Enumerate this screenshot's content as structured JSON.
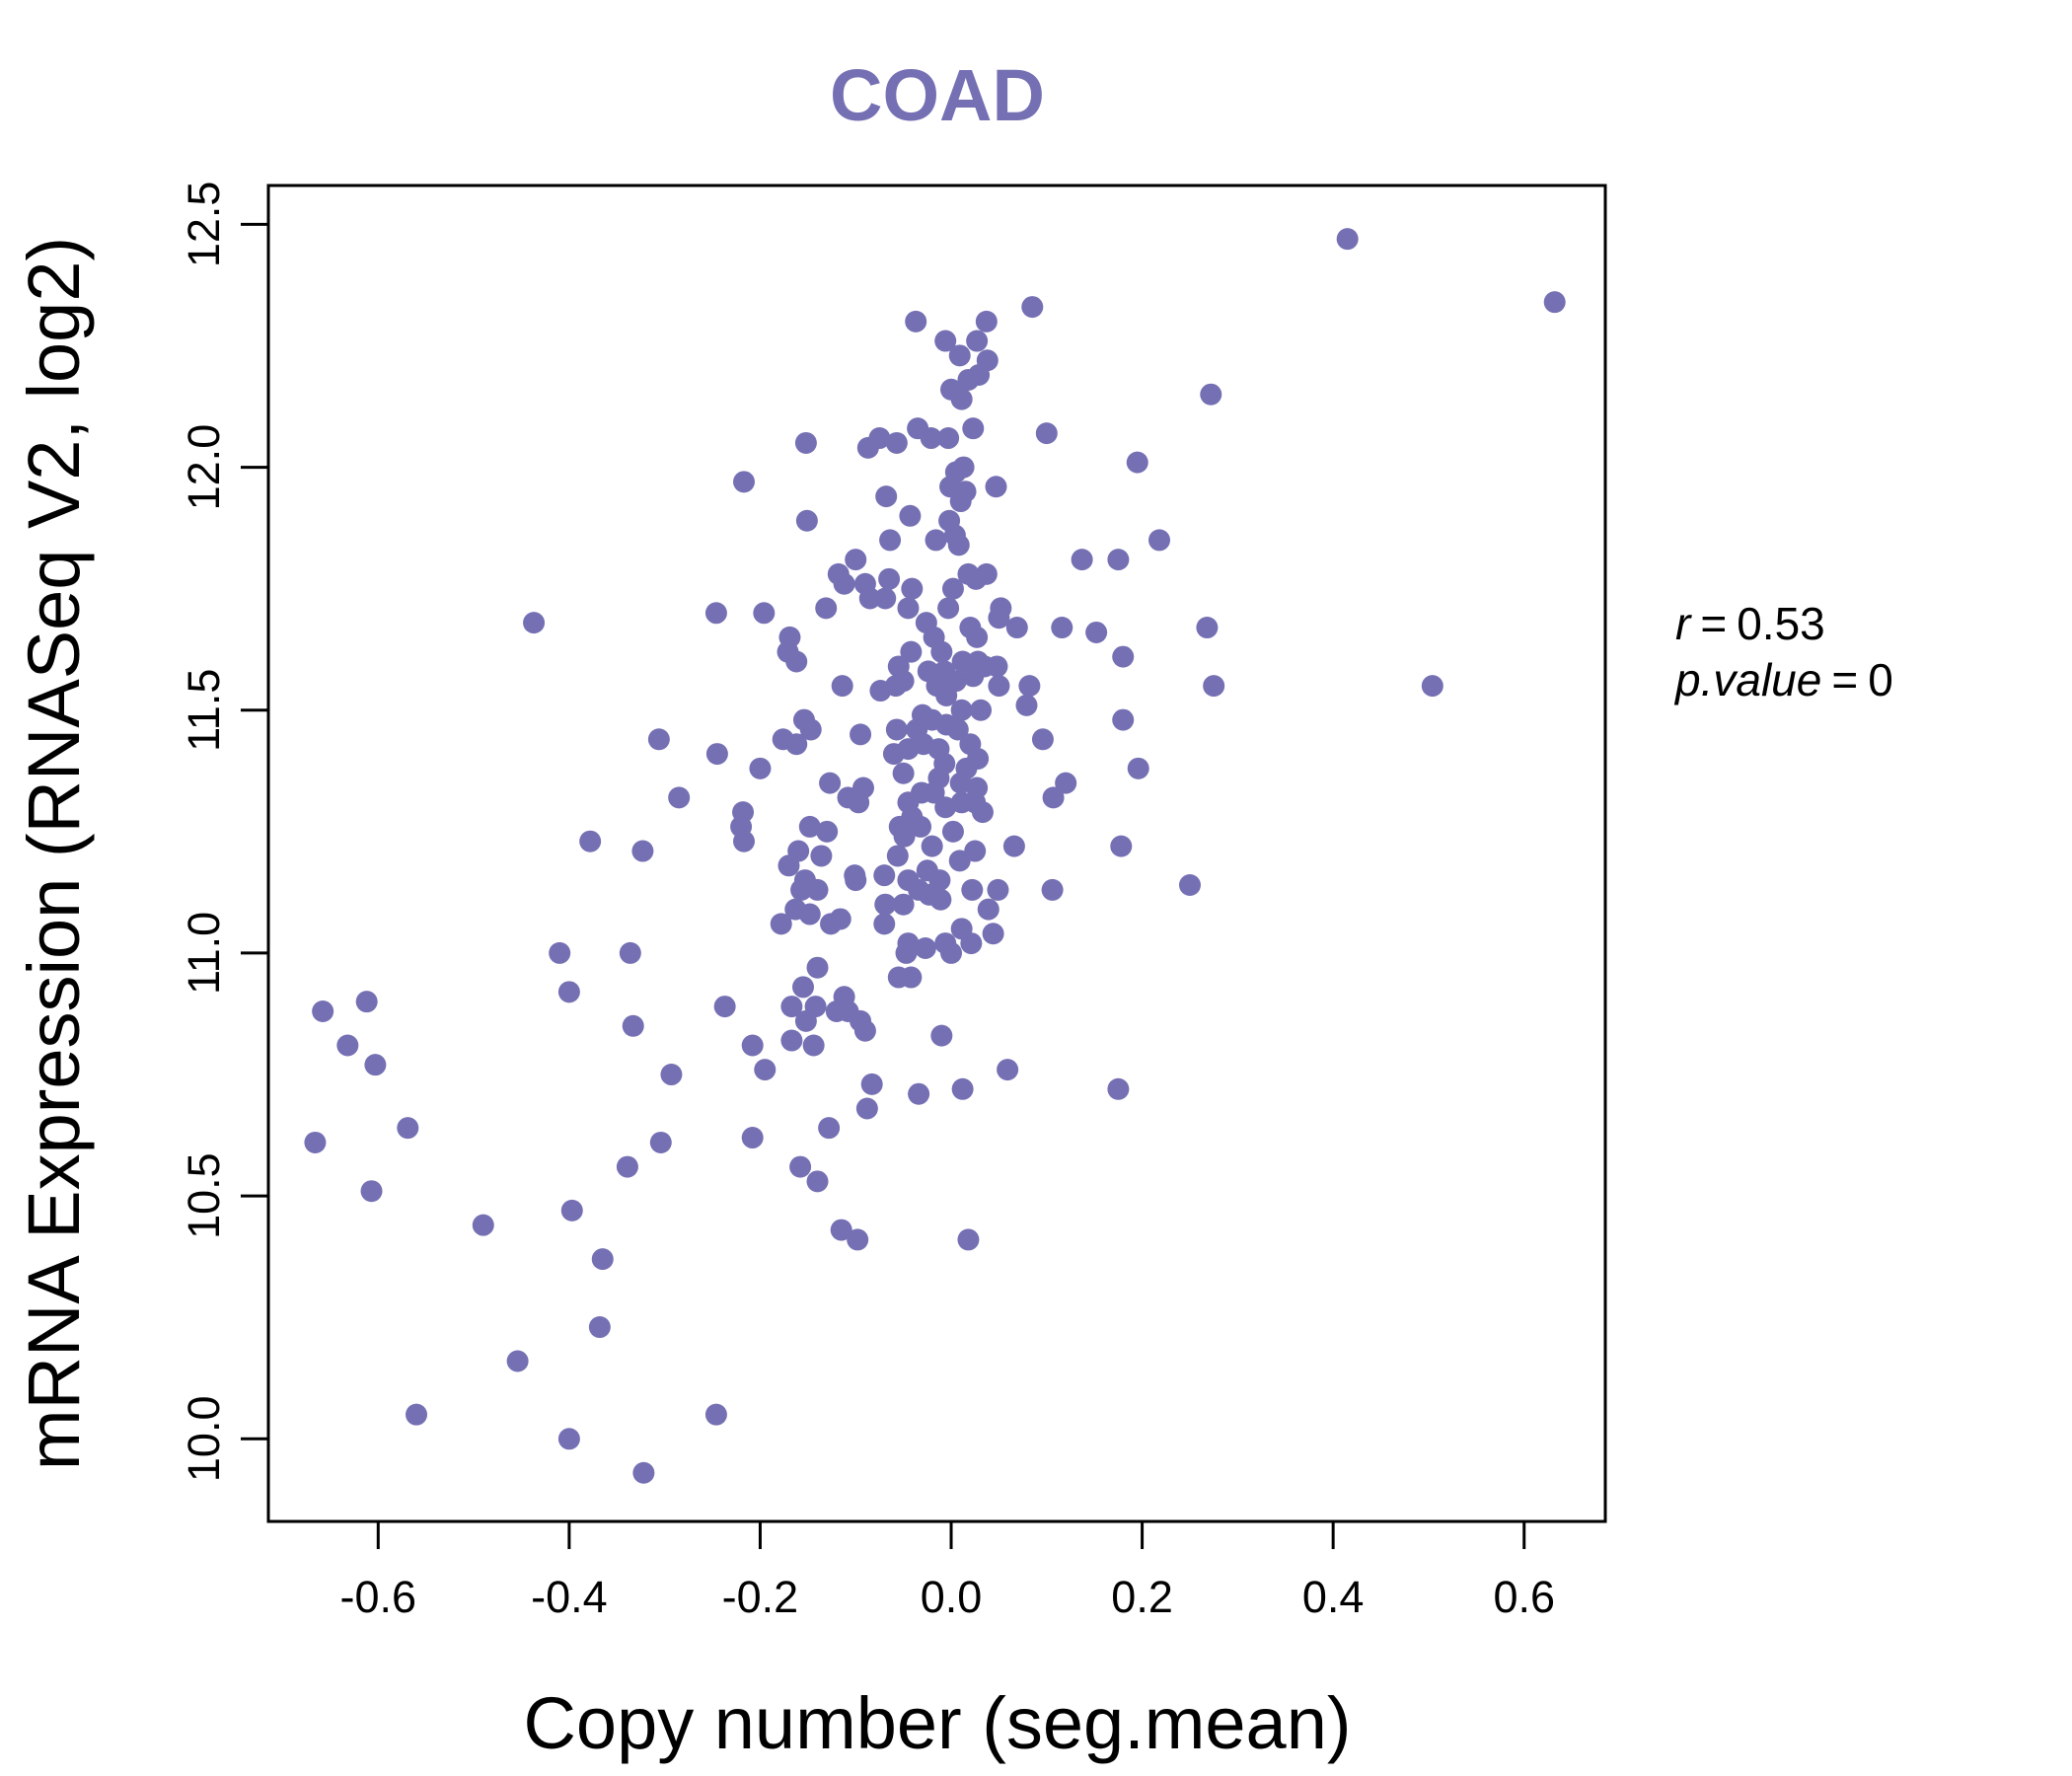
{
  "colors": {
    "accent": "#7570B3",
    "axis": "#000000"
  },
  "chart_data": {
    "type": "scatter",
    "title": "COAD",
    "xlabel": "Copy number (seg.mean)",
    "ylabel": "mRNA Expression (RNASeq V2, log2)",
    "xlim": [
      -0.715,
      0.685
    ],
    "ylim": [
      9.83,
      12.58
    ],
    "x_ticks": [
      -0.6,
      -0.4,
      -0.2,
      0.0,
      0.2,
      0.4,
      0.6
    ],
    "x_tick_labels": [
      "-0.6",
      "-0.4",
      "-0.2",
      "0.0",
      "0.2",
      "0.4",
      "0.6"
    ],
    "y_ticks": [
      10.0,
      10.5,
      11.0,
      11.5,
      12.0,
      12.5
    ],
    "y_tick_labels": [
      "10.0",
      "10.5",
      "11.0",
      "11.5",
      "12.0",
      "12.5"
    ],
    "annotation": {
      "r_label": "r",
      "r_value": "0.53",
      "p_label": "p.value",
      "p_value": "0"
    },
    "points": [
      [
        0.415,
        12.47
      ],
      [
        0.632,
        12.34
      ],
      [
        0.272,
        12.15
      ],
      [
        0.504,
        11.55
      ],
      [
        0.268,
        11.67
      ],
      [
        0.275,
        11.55
      ],
      [
        0.25,
        11.14
      ],
      [
        0.085,
        12.33
      ],
      [
        0.1,
        12.07
      ],
      [
        0.195,
        12.01
      ],
      [
        0.218,
        11.85
      ],
      [
        0.175,
        11.81
      ],
      [
        0.137,
        11.81
      ],
      [
        0.18,
        11.61
      ],
      [
        0.152,
        11.66
      ],
      [
        0.116,
        11.67
      ],
      [
        0.18,
        11.48
      ],
      [
        0.196,
        11.38
      ],
      [
        0.12,
        11.35
      ],
      [
        0.107,
        11.32
      ],
      [
        0.178,
        11.22
      ],
      [
        0.106,
        11.13
      ],
      [
        0.175,
        10.72
      ],
      [
        0.059,
        10.76
      ],
      [
        0.096,
        11.44
      ],
      [
        0.079,
        11.51
      ],
      [
        0.082,
        11.55
      ],
      [
        0.069,
        11.67
      ],
      [
        0.052,
        11.71
      ],
      [
        0.05,
        11.69
      ],
      [
        0.048,
        11.59
      ],
      [
        0.05,
        11.55
      ],
      [
        0.047,
        11.96
      ],
      [
        0.037,
        12.3
      ],
      [
        0.038,
        12.22
      ],
      [
        0.027,
        12.26
      ],
      [
        0.023,
        12.08
      ],
      [
        0.029,
        12.19
      ],
      [
        0.018,
        12.18
      ],
      [
        0.011,
        12.14
      ],
      [
        0.009,
        12.23
      ],
      [
        0.0,
        12.16
      ],
      [
        -0.006,
        12.26
      ],
      [
        -0.037,
        12.3
      ],
      [
        0.013,
        12.0
      ],
      [
        0.005,
        11.99
      ],
      [
        -0.003,
        12.06
      ],
      [
        -0.001,
        11.96
      ],
      [
        0.015,
        11.95
      ],
      [
        0.01,
        11.93
      ],
      [
        -0.002,
        11.89
      ],
      [
        0.004,
        11.86
      ],
      [
        0.008,
        11.84
      ],
      [
        -0.016,
        11.85
      ],
      [
        -0.043,
        11.9
      ],
      [
        -0.068,
        11.94
      ],
      [
        -0.021,
        12.06
      ],
      [
        -0.035,
        12.08
      ],
      [
        -0.057,
        12.05
      ],
      [
        -0.075,
        12.06
      ],
      [
        -0.087,
        12.04
      ],
      [
        -0.152,
        12.05
      ],
      [
        -0.217,
        11.97
      ],
      [
        -0.151,
        11.89
      ],
      [
        -0.064,
        11.85
      ],
      [
        -0.1,
        11.81
      ],
      [
        -0.118,
        11.78
      ],
      [
        -0.112,
        11.76
      ],
      [
        -0.065,
        11.77
      ],
      [
        -0.09,
        11.76
      ],
      [
        -0.085,
        11.73
      ],
      [
        -0.069,
        11.73
      ],
      [
        -0.041,
        11.75
      ],
      [
        -0.045,
        11.71
      ],
      [
        -0.026,
        11.68
      ],
      [
        -0.003,
        11.71
      ],
      [
        0.002,
        11.75
      ],
      [
        0.018,
        11.78
      ],
      [
        0.026,
        11.77
      ],
      [
        0.037,
        11.78
      ],
      [
        0.02,
        11.67
      ],
      [
        0.027,
        11.65
      ],
      [
        -0.018,
        11.65
      ],
      [
        -0.01,
        11.62
      ],
      [
        -0.042,
        11.62
      ],
      [
        -0.055,
        11.59
      ],
      [
        -0.007,
        11.58
      ],
      [
        0.005,
        11.56
      ],
      [
        0.012,
        11.6
      ],
      [
        0.023,
        11.57
      ],
      [
        0.028,
        11.6
      ],
      [
        0.035,
        11.59
      ],
      [
        0.031,
        11.5
      ],
      [
        0.011,
        11.5
      ],
      [
        -0.005,
        11.53
      ],
      [
        -0.015,
        11.55
      ],
      [
        -0.024,
        11.58
      ],
      [
        -0.05,
        11.56
      ],
      [
        -0.058,
        11.55
      ],
      [
        -0.074,
        11.54
      ],
      [
        -0.03,
        11.49
      ],
      [
        -0.036,
        11.46
      ],
      [
        -0.02,
        11.48
      ],
      [
        -0.005,
        11.47
      ],
      [
        0.007,
        11.46
      ],
      [
        0.02,
        11.43
      ],
      [
        0.028,
        11.4
      ],
      [
        0.016,
        11.38
      ],
      [
        -0.007,
        11.39
      ],
      [
        -0.013,
        11.42
      ],
      [
        -0.029,
        11.43
      ],
      [
        -0.045,
        11.42
      ],
      [
        -0.057,
        11.46
      ],
      [
        -0.06,
        11.41
      ],
      [
        -0.05,
        11.37
      ],
      [
        -0.013,
        11.36
      ],
      [
        0.01,
        11.35
      ],
      [
        0.027,
        11.34
      ],
      [
        0.025,
        11.31
      ],
      [
        0.033,
        11.29
      ],
      [
        0.011,
        11.31
      ],
      [
        -0.006,
        11.3
      ],
      [
        -0.018,
        11.33
      ],
      [
        -0.031,
        11.33
      ],
      [
        -0.045,
        11.31
      ],
      [
        -0.041,
        11.28
      ],
      [
        -0.054,
        11.26
      ],
      [
        -0.032,
        11.26
      ],
      [
        0.002,
        11.25
      ],
      [
        -0.02,
        11.22
      ],
      [
        -0.056,
        11.2
      ],
      [
        -0.049,
        11.24
      ],
      [
        0.025,
        11.21
      ],
      [
        0.066,
        11.22
      ],
      [
        0.009,
        11.19
      ],
      [
        -0.025,
        11.17
      ],
      [
        -0.045,
        11.15
      ],
      [
        -0.07,
        11.16
      ],
      [
        -0.012,
        11.15
      ],
      [
        -0.034,
        11.13
      ],
      [
        -0.023,
        11.12
      ],
      [
        -0.011,
        11.11
      ],
      [
        0.022,
        11.13
      ],
      [
        0.049,
        11.13
      ],
      [
        0.039,
        11.09
      ],
      [
        0.044,
        11.04
      ],
      [
        0.021,
        11.02
      ],
      [
        0.011,
        11.05
      ],
      [
        -0.006,
        11.02
      ],
      [
        0.0,
        11.0
      ],
      [
        -0.027,
        11.01
      ],
      [
        -0.045,
        11.02
      ],
      [
        -0.047,
        11.0
      ],
      [
        -0.069,
        11.1
      ],
      [
        -0.07,
        11.06
      ],
      [
        -0.05,
        11.1
      ],
      [
        -0.055,
        10.95
      ],
      [
        -0.042,
        10.95
      ],
      [
        -0.1,
        11.15
      ],
      [
        -0.101,
        11.16
      ],
      [
        -0.14,
        11.13
      ],
      [
        -0.157,
        11.13
      ],
      [
        -0.153,
        11.15
      ],
      [
        -0.17,
        11.18
      ],
      [
        -0.126,
        11.06
      ],
      [
        -0.116,
        11.07
      ],
      [
        -0.163,
        11.09
      ],
      [
        -0.148,
        11.08
      ],
      [
        -0.178,
        11.06
      ],
      [
        -0.14,
        10.97
      ],
      [
        -0.155,
        10.93
      ],
      [
        -0.167,
        10.89
      ],
      [
        -0.142,
        10.89
      ],
      [
        -0.152,
        10.86
      ],
      [
        -0.144,
        10.81
      ],
      [
        -0.167,
        10.82
      ],
      [
        -0.112,
        10.91
      ],
      [
        -0.108,
        10.88
      ],
      [
        -0.12,
        10.88
      ],
      [
        -0.095,
        10.86
      ],
      [
        -0.09,
        10.84
      ],
      [
        -0.083,
        10.73
      ],
      [
        -0.088,
        10.68
      ],
      [
        -0.034,
        10.71
      ],
      [
        -0.01,
        10.83
      ],
      [
        0.012,
        10.72
      ],
      [
        -0.128,
        10.64
      ],
      [
        -0.158,
        10.56
      ],
      [
        -0.14,
        10.53
      ],
      [
        -0.115,
        10.43
      ],
      [
        -0.098,
        10.41
      ],
      [
        0.018,
        10.41
      ],
      [
        -0.13,
        11.25
      ],
      [
        -0.148,
        11.26
      ],
      [
        -0.136,
        11.2
      ],
      [
        -0.16,
        11.21
      ],
      [
        -0.097,
        11.31
      ],
      [
        -0.108,
        11.32
      ],
      [
        -0.092,
        11.34
      ],
      [
        -0.127,
        11.35
      ],
      [
        -0.147,
        11.46
      ],
      [
        -0.154,
        11.48
      ],
      [
        -0.176,
        11.44
      ],
      [
        -0.162,
        11.43
      ],
      [
        -0.095,
        11.45
      ],
      [
        -0.114,
        11.55
      ],
      [
        -0.162,
        11.6
      ],
      [
        -0.171,
        11.62
      ],
      [
        -0.169,
        11.65
      ],
      [
        -0.131,
        11.71
      ],
      [
        -0.196,
        11.7
      ],
      [
        -0.246,
        11.7
      ],
      [
        -0.2,
        11.38
      ],
      [
        -0.245,
        11.41
      ],
      [
        -0.306,
        11.44
      ],
      [
        -0.285,
        11.32
      ],
      [
        -0.218,
        11.29
      ],
      [
        -0.22,
        11.26
      ],
      [
        -0.217,
        11.23
      ],
      [
        -0.378,
        11.23
      ],
      [
        -0.323,
        11.21
      ],
      [
        -0.437,
        11.68
      ],
      [
        -0.41,
        11.0
      ],
      [
        -0.336,
        11.0
      ],
      [
        -0.4,
        10.92
      ],
      [
        -0.237,
        10.89
      ],
      [
        -0.208,
        10.81
      ],
      [
        -0.195,
        10.76
      ],
      [
        -0.293,
        10.75
      ],
      [
        -0.333,
        10.85
      ],
      [
        -0.208,
        10.62
      ],
      [
        -0.304,
        10.61
      ],
      [
        -0.339,
        10.56
      ],
      [
        -0.397,
        10.47
      ],
      [
        -0.49,
        10.44
      ],
      [
        -0.365,
        10.37
      ],
      [
        -0.368,
        10.23
      ],
      [
        -0.454,
        10.16
      ],
      [
        -0.56,
        10.05
      ],
      [
        -0.4,
        10.0
      ],
      [
        -0.322,
        9.93
      ],
      [
        -0.246,
        10.05
      ],
      [
        -0.666,
        10.61
      ],
      [
        -0.607,
        10.51
      ],
      [
        -0.569,
        10.64
      ],
      [
        -0.658,
        10.88
      ],
      [
        -0.612,
        10.9
      ],
      [
        -0.632,
        10.81
      ],
      [
        -0.603,
        10.77
      ]
    ]
  }
}
